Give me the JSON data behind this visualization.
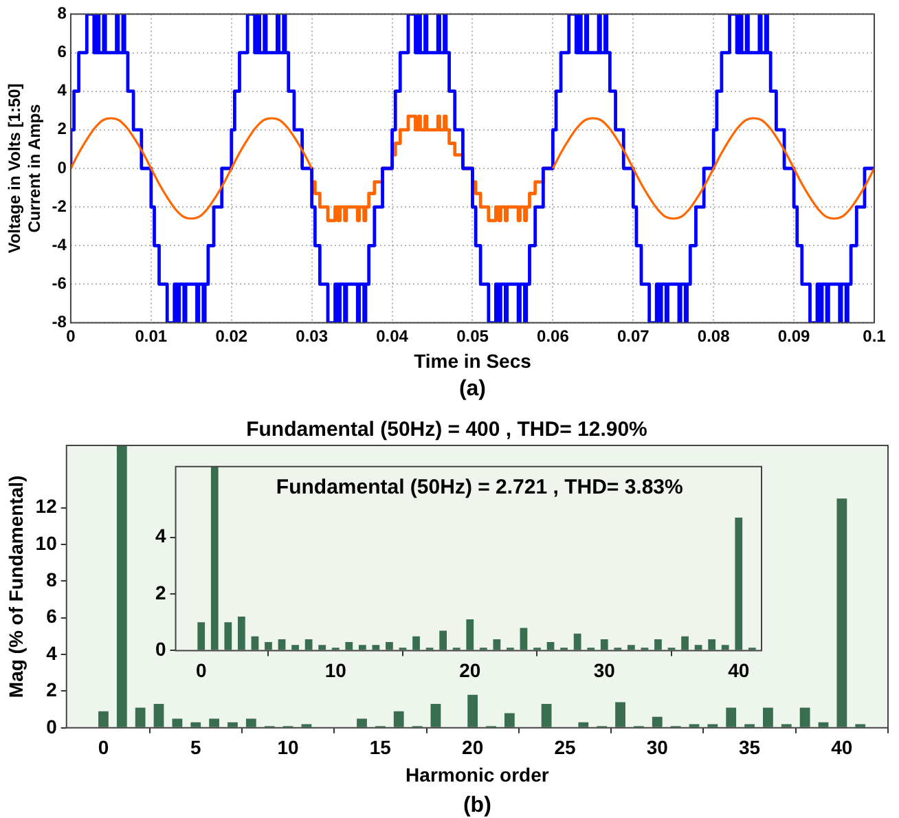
{
  "chart_data": [
    {
      "type": "line",
      "xlabel": "Time in Secs",
      "ylabel": "Voltage in Volts [1:50]\nCurrent in Amps",
      "annotations": [
        "(a)"
      ],
      "xlim": [
        0,
        0.1
      ],
      "xticks": [
        0,
        0.01,
        0.02,
        0.03,
        0.04,
        0.05,
        0.06,
        0.07,
        0.08,
        0.09,
        0.1
      ],
      "ylim": [
        -8,
        8
      ],
      "yticks": [
        -8,
        -6,
        -4,
        -2,
        0,
        2,
        4,
        6,
        8
      ],
      "grid": true,
      "series": [
        {
          "type": "step",
          "color": "#0000ff",
          "x": [
            0,
            0.0004,
            0.001,
            0.002,
            0.0029,
            0.0033,
            0.0035,
            0.0041,
            0.0043,
            0.0057,
            0.0059,
            0.0065,
            0.0067,
            0.0071,
            0.0078,
            0.0088,
            0.0096,
            0.01,
            0.0104,
            0.011,
            0.012,
            0.0129,
            0.0133,
            0.0135,
            0.0141,
            0.0143,
            0.0157,
            0.0159,
            0.0165,
            0.0167,
            0.0171,
            0.0178,
            0.0188,
            0.0196,
            0.02,
            0.0204,
            0.021,
            0.022,
            0.0229,
            0.0233,
            0.0235,
            0.0241,
            0.0243,
            0.0257,
            0.0259,
            0.0265,
            0.0267,
            0.0271,
            0.0278,
            0.0288,
            0.0296,
            0.03,
            0.0304,
            0.031,
            0.032,
            0.0329,
            0.0333,
            0.0335,
            0.0341,
            0.0343,
            0.0357,
            0.0359,
            0.0365,
            0.0367,
            0.0371,
            0.0378,
            0.0388,
            0.0396,
            0.04,
            0.0404,
            0.041,
            0.042,
            0.0429,
            0.0433,
            0.0435,
            0.0441,
            0.0443,
            0.0457,
            0.0459,
            0.0465,
            0.0467,
            0.0471,
            0.0478,
            0.0488,
            0.0496,
            0.05,
            0.0504,
            0.051,
            0.052,
            0.0529,
            0.0533,
            0.0535,
            0.0541,
            0.0543,
            0.0557,
            0.0559,
            0.0565,
            0.0567,
            0.0571,
            0.0578,
            0.0588,
            0.0596,
            0.06,
            0.0604,
            0.061,
            0.062,
            0.0629,
            0.0633,
            0.0635,
            0.0641,
            0.0643,
            0.0657,
            0.0659,
            0.0665,
            0.0667,
            0.0671,
            0.0678,
            0.0688,
            0.0696,
            0.07,
            0.0704,
            0.071,
            0.072,
            0.0729,
            0.0733,
            0.0735,
            0.0741,
            0.0743,
            0.0757,
            0.0759,
            0.0765,
            0.0767,
            0.0771,
            0.0778,
            0.0788,
            0.0796,
            0.08,
            0.0804,
            0.081,
            0.082,
            0.0829,
            0.0833,
            0.0835,
            0.0841,
            0.0843,
            0.0857,
            0.0859,
            0.0865,
            0.0867,
            0.0871,
            0.0878,
            0.0888,
            0.0896,
            0.09,
            0.0904,
            0.091,
            0.092,
            0.0929,
            0.0933,
            0.0935,
            0.0941,
            0.0943,
            0.0957,
            0.0959,
            0.0965,
            0.0967,
            0.0971,
            0.0978,
            0.0988,
            0.0996,
            0.1
          ],
          "values": [
            0,
            2,
            4,
            6,
            8,
            6,
            8,
            6,
            8,
            6,
            8,
            6,
            8,
            6,
            4,
            2,
            0,
            0,
            -2,
            -4,
            -6,
            -8,
            -6,
            -8,
            -6,
            -8,
            -6,
            -8,
            -6,
            -8,
            -6,
            -4,
            -2,
            0,
            0,
            2,
            4,
            6,
            8,
            6,
            8,
            6,
            8,
            6,
            8,
            6,
            8,
            6,
            4,
            2,
            0,
            0,
            -2,
            -4,
            -6,
            -8,
            -6,
            -8,
            -6,
            -8,
            -6,
            -8,
            -6,
            -8,
            -6,
            -4,
            -2,
            0,
            0,
            2,
            4,
            6,
            8,
            6,
            8,
            6,
            8,
            6,
            8,
            6,
            8,
            6,
            4,
            2,
            0,
            0,
            -2,
            -4,
            -6,
            -8,
            -6,
            -8,
            -6,
            -8,
            -6,
            -8,
            -6,
            -8,
            -6,
            -4,
            -2,
            0,
            0,
            2,
            4,
            6,
            8,
            6,
            8,
            6,
            8,
            6,
            8,
            6,
            8,
            6,
            4,
            2,
            0,
            0,
            -2,
            -4,
            -6,
            -8,
            -6,
            -8,
            -6,
            -8,
            -6,
            -8,
            -6,
            -8,
            -6,
            -4,
            -2,
            0,
            0,
            2,
            4,
            6,
            8,
            6,
            8,
            6,
            8,
            6,
            8,
            6,
            8,
            6,
            4,
            2,
            0,
            0,
            -2,
            -4,
            -6,
            -8,
            -6,
            -8,
            -6,
            -8,
            -6,
            -8,
            -6,
            -8,
            -6,
            -4,
            -2,
            0,
            0
          ]
        },
        {
          "color": "#ff6600",
          "x": [
            0,
            0.001,
            0.002,
            0.003,
            0.004,
            0.005,
            0.006,
            0.007,
            0.008,
            0.009,
            0.01,
            0.011,
            0.012,
            0.013,
            0.014,
            0.015,
            0.016,
            0.017,
            0.018,
            0.019,
            0.02,
            0.021,
            0.022,
            0.023,
            0.024,
            0.025,
            0.026,
            0.027,
            0.028,
            0.029,
            0.03,
            0.031,
            0.032,
            0.033,
            0.034,
            0.035,
            0.036,
            0.037,
            0.038,
            0.039,
            0.04,
            0.041,
            0.042,
            0.043,
            0.044,
            0.045,
            0.046,
            0.047,
            0.048,
            0.049,
            0.05,
            0.051,
            0.052,
            0.053,
            0.054,
            0.055,
            0.056,
            0.057,
            0.058,
            0.059,
            0.06,
            0.061,
            0.062,
            0.063,
            0.064,
            0.065,
            0.066,
            0.067,
            0.068,
            0.069,
            0.07,
            0.071,
            0.072,
            0.073,
            0.074,
            0.075,
            0.076,
            0.077,
            0.078,
            0.079,
            0.08,
            0.081,
            0.082,
            0.083,
            0.084,
            0.085,
            0.086,
            0.087,
            0.088,
            0.089,
            0.09,
            0.091,
            0.092,
            0.093,
            0.094,
            0.095,
            0.096,
            0.097,
            0.098,
            0.099,
            0.1
          ],
          "values": [
            0,
            0.8,
            1.5,
            2.1,
            2.5,
            2.6,
            2.5,
            2.1,
            1.5,
            0.8,
            0,
            -0.8,
            -1.5,
            -2.1,
            -2.5,
            -2.6,
            -2.5,
            -2.1,
            -1.5,
            -0.8,
            0,
            0.8,
            1.5,
            2.1,
            2.5,
            2.6,
            2.5,
            2.1,
            1.5,
            0.8,
            0,
            null,
            null,
            null,
            null,
            null,
            null,
            null,
            null,
            null,
            null,
            null,
            null,
            null,
            null,
            null,
            null,
            null,
            null,
            null,
            null,
            null,
            null,
            null,
            null,
            null,
            null,
            null,
            null,
            null,
            0,
            0.8,
            1.5,
            2.1,
            2.5,
            2.6,
            2.5,
            2.1,
            1.5,
            0.8,
            0,
            -0.8,
            -1.5,
            -2.1,
            -2.5,
            -2.6,
            -2.5,
            -2.1,
            -1.5,
            -0.8,
            0,
            0.8,
            1.5,
            2.1,
            2.5,
            2.6,
            2.5,
            2.1,
            1.5,
            0.8,
            0,
            -0.8,
            -1.5,
            -2.1,
            -2.5,
            -2.6,
            -2.5,
            -2.1,
            -1.5,
            -0.8,
            0
          ]
        },
        {
          "type": "step",
          "color": "#ff6600",
          "x": [
            0.03,
            0.0304,
            0.031,
            0.032,
            0.0329,
            0.0333,
            0.0335,
            0.0341,
            0.0343,
            0.0357,
            0.0359,
            0.0365,
            0.0367,
            0.0371,
            0.0378,
            0.0388,
            0.0396,
            0.04,
            0.0404,
            0.041,
            0.042,
            0.0429,
            0.0433,
            0.0435,
            0.0441,
            0.0443,
            0.0457,
            0.0459,
            0.0465,
            0.0467,
            0.0471,
            0.0478,
            0.0488,
            0.0496,
            0.05,
            0.0504,
            0.051,
            0.052,
            0.0529,
            0.0533,
            0.0535,
            0.0541,
            0.0543,
            0.0557,
            0.0559,
            0.0565,
            0.0567,
            0.0571,
            0.0578,
            0.0588,
            0.0596,
            0.06
          ],
          "values": [
            0,
            -0.7,
            -1.3,
            -2,
            -2.7,
            -2,
            -2.7,
            -2,
            -2.7,
            -2,
            -2.7,
            -2,
            -2.7,
            -2,
            -1.3,
            -0.7,
            0,
            0,
            0.7,
            1.3,
            2,
            2.7,
            2,
            2.7,
            2,
            2.7,
            2,
            2.7,
            2,
            2.7,
            2,
            1.3,
            0.7,
            0,
            0,
            -0.7,
            -1.3,
            -2,
            -2.7,
            -2,
            -2.7,
            -2,
            -2.7,
            -2,
            -2.7,
            -2,
            -2.7,
            -2,
            -1.3,
            -0.7,
            0,
            0
          ]
        }
      ]
    },
    {
      "type": "bar",
      "title": "Fundamental (50Hz) = 400 , THD= 12.90%",
      "xlabel": "Harmonic order",
      "ylabel": "Mag (% of Fundamental)",
      "annotations": [
        "(b)"
      ],
      "color": "#3a6e50",
      "grid": false,
      "xlim": [
        -2,
        42.5
      ],
      "xticks": [
        0,
        5,
        10,
        15,
        20,
        25,
        30,
        35,
        40
      ],
      "ylim": [
        0,
        15.4
      ],
      "yticks": [
        0,
        2,
        4,
        6,
        8,
        10,
        12
      ],
      "x": [
        0,
        1,
        2,
        3,
        4,
        5,
        6,
        7,
        8,
        9,
        10,
        11,
        12,
        13,
        14,
        15,
        16,
        17,
        18,
        19,
        20,
        21,
        22,
        23,
        24,
        25,
        26,
        27,
        28,
        29,
        30,
        31,
        32,
        33,
        34,
        35,
        36,
        37,
        38,
        39,
        40,
        41
      ],
      "values": [
        0.9,
        15.4,
        1.1,
        1.3,
        0.5,
        0.3,
        0.5,
        0.3,
        0.5,
        0.1,
        0.1,
        0.2,
        0,
        0,
        0.5,
        0.1,
        0.9,
        0.1,
        1.3,
        0,
        1.8,
        0.1,
        0.8,
        0,
        1.3,
        0,
        0.3,
        0.1,
        1.4,
        0.1,
        0.6,
        0.1,
        0.2,
        0.2,
        1.1,
        0.2,
        1.1,
        0.2,
        1.1,
        0.3,
        12.5,
        0.2
      ]
    },
    {
      "type": "bar",
      "title": "Fundamental (50Hz) = 2.721 , THD= 3.83%",
      "color": "#3a6e50",
      "grid": false,
      "xlim": [
        -1.9,
        41.7
      ],
      "xticks": [
        0,
        10,
        20,
        30,
        40
      ],
      "ylim": [
        0,
        6.5
      ],
      "yticks": [
        0,
        2,
        4
      ],
      "x": [
        0,
        1,
        2,
        3,
        4,
        5,
        6,
        7,
        8,
        9,
        10,
        11,
        12,
        13,
        14,
        15,
        16,
        17,
        18,
        19,
        20,
        21,
        22,
        23,
        24,
        25,
        26,
        27,
        28,
        29,
        30,
        31,
        32,
        33,
        34,
        35,
        36,
        37,
        38,
        39,
        40,
        41
      ],
      "values": [
        1,
        6.5,
        1,
        1.2,
        0.5,
        0.3,
        0.4,
        0.2,
        0.4,
        0.2,
        0.1,
        0.3,
        0.2,
        0.2,
        0.3,
        0.1,
        0.5,
        0.1,
        0.7,
        0.1,
        1.1,
        0.1,
        0.4,
        0.1,
        0.8,
        0.1,
        0.3,
        0.1,
        0.6,
        0.1,
        0.4,
        0.1,
        0.2,
        0.1,
        0.4,
        0.1,
        0.5,
        0.2,
        0.4,
        0.2,
        4.7,
        0.1
      ]
    }
  ]
}
